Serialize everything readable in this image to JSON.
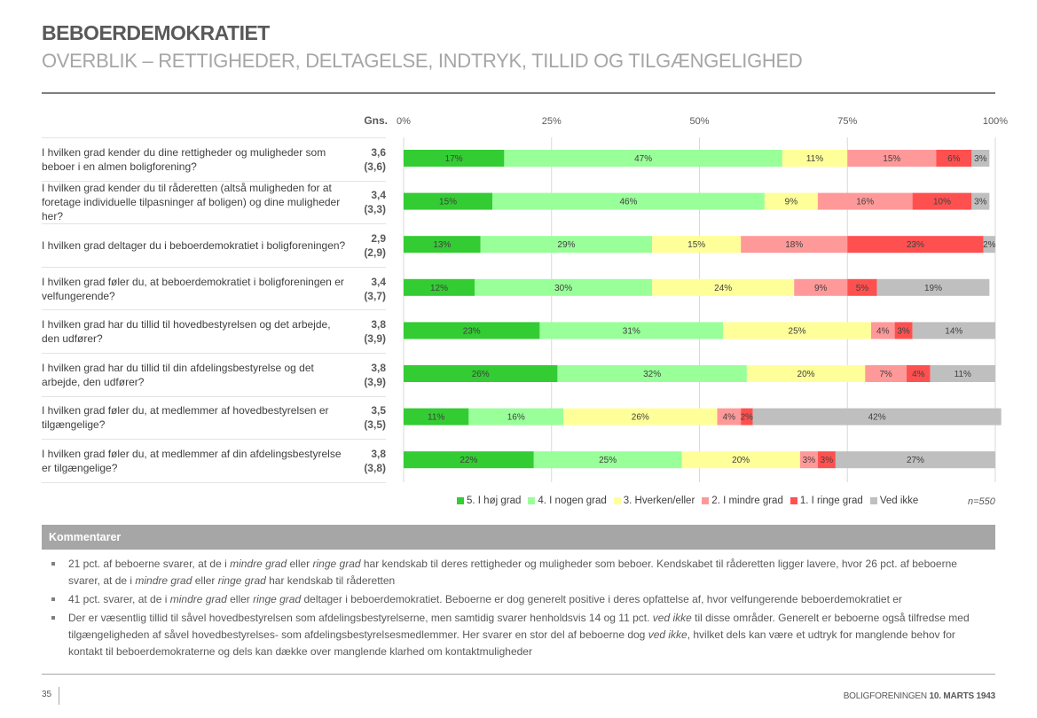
{
  "header": {
    "title": "BEBOERDEMOKRATIET",
    "subtitle": "OVERBLIK – RETTIGHEDER, DELTAGELSE, INDTRYK, TILLID OG TILGÆNGELIGHED"
  },
  "table": {
    "gns_header": "Gns.",
    "rows": [
      {
        "question": "I hvilken grad kender du dine rettigheder og muligheder som beboer i en almen boligforening?",
        "gns": "3,6",
        "gns_prev": "(3,6)"
      },
      {
        "question": "I hvilken grad kender du til råderetten (altså muligheden for at foretage individuelle tilpasninger af boligen) og dine muligheder her?",
        "gns": "3,4",
        "gns_prev": "(3,3)"
      },
      {
        "question": "I hvilken grad deltager du i beboerdemokratiet i boligforeningen?",
        "gns": "2,9",
        "gns_prev": "(2,9)"
      },
      {
        "question": "I hvilken grad føler du, at beboerdemokratiet i boligforeningen er velfungerende?",
        "gns": "3,4",
        "gns_prev": "(3,7)"
      },
      {
        "question": "I hvilken grad har du tillid til hovedbestyrelsen og det arbejde, den udfører?",
        "gns": "3,8",
        "gns_prev": "(3,9)"
      },
      {
        "question": "I hvilken grad har du tillid til din afdelingsbestyrelse og det arbejde, den udfører?",
        "gns": "3,8",
        "gns_prev": "(3,9)"
      },
      {
        "question": "I hvilken grad føler du, at medlemmer af hovedbestyrelsen er tilgængelige?",
        "gns": "3,5",
        "gns_prev": "(3,5)"
      },
      {
        "question": "I hvilken grad føler du, at medlemmer af din afdelingsbestyrelse er tilgængelige?",
        "gns": "3,8",
        "gns_prev": "(3,8)"
      }
    ]
  },
  "chart_data": {
    "type": "bar",
    "orientation": "horizontal",
    "stacked": true,
    "title": "",
    "xlabel": "",
    "ylabel": "",
    "xlim": [
      0,
      100
    ],
    "x_ticks": [
      "0%",
      "25%",
      "50%",
      "75%",
      "100%"
    ],
    "x_tick_values": [
      0,
      25,
      50,
      75,
      100
    ],
    "grid": true,
    "legend_position": "bottom-right",
    "categories": [
      "I hvilken grad kender du dine rettigheder og muligheder som beboer i en almen boligforening?",
      "I hvilken grad kender du til råderetten (altså muligheden for at foretage individuelle tilpasninger af boligen) og dine muligheder her?",
      "I hvilken grad deltager du i beboerdemokratiet i boligforeningen?",
      "I hvilken grad føler du, at beboerdemokratiet i boligforeningen er velfungerende?",
      "I hvilken grad har du tillid til hovedbestyrelsen og det arbejde, den udfører?",
      "I hvilken grad har du tillid til din afdelingsbestyrelse og det arbejde, den udfører?",
      "I hvilken grad føler du, at medlemmer af hovedbestyrelsen er tilgængelige?",
      "I hvilken grad føler du, at medlemmer af din afdelingsbestyrelse er tilgængelige?"
    ],
    "series": [
      {
        "name": "5. I høj grad",
        "color": "#33cc33",
        "values": [
          17,
          15,
          13,
          12,
          23,
          26,
          11,
          22
        ]
      },
      {
        "name": "4. I nogen grad",
        "color": "#99ff99",
        "values": [
          47,
          46,
          29,
          30,
          31,
          32,
          16,
          25
        ]
      },
      {
        "name": "3. Hverken/eller",
        "color": "#ffff99",
        "values": [
          11,
          9,
          15,
          24,
          25,
          20,
          26,
          20
        ]
      },
      {
        "name": "2. I mindre grad",
        "color": "#ff9999",
        "values": [
          15,
          16,
          18,
          9,
          4,
          7,
          4,
          3
        ]
      },
      {
        "name": "1. I ringe grad",
        "color": "#ff5050",
        "values": [
          6,
          10,
          23,
          5,
          3,
          4,
          2,
          3
        ]
      },
      {
        "name": "Ved ikke",
        "color": "#bfbfbf",
        "values": [
          3,
          3,
          2,
          19,
          14,
          11,
          42,
          27
        ]
      }
    ],
    "value_suffix": "%",
    "n_label": "n=550"
  },
  "comments": {
    "header": "Kommentarer",
    "items": [
      [
        {
          "t": "21 pct. af beboerne svarer, at de i "
        },
        {
          "t": "mindre grad",
          "i": true
        },
        {
          "t": " eller "
        },
        {
          "t": "ringe grad",
          "i": true
        },
        {
          "t": " har kendskab til deres rettigheder og muligheder som beboer. Kendskabet til råderetten ligger lavere, hvor 26 pct. af beboerne svarer, at de i "
        },
        {
          "t": "mindre grad",
          "i": true
        },
        {
          "t": " eller "
        },
        {
          "t": "ringe grad",
          "i": true
        },
        {
          "t": " har kendskab til råderetten"
        }
      ],
      [
        {
          "t": "41 pct. svarer, at de i "
        },
        {
          "t": "mindre grad",
          "i": true
        },
        {
          "t": " eller "
        },
        {
          "t": "ringe grad",
          "i": true
        },
        {
          "t": " deltager i beboerdemokratiet. Beboerne er dog generelt positive i deres opfattelse af, hvor velfungerende beboerdemokratiet er"
        }
      ],
      [
        {
          "t": "Der er væsentlig tillid til såvel hovedbestyrelsen som afdelingsbestyrelserne, men samtidig svarer henholdsvis 14 og 11 pct. "
        },
        {
          "t": "ved ikke",
          "i": true
        },
        {
          "t": " til disse områder. Generelt er beboerne også tilfredse med tilgængeligheden af såvel hovedbestyrelses- som afdelingsbestyrelsesmedlemmer. Her svarer en stor del af beboerne dog "
        },
        {
          "t": "ved ikke",
          "i": true
        },
        {
          "t": ", hvilket dels kan være et udtryk for manglende behov for kontakt til beboerdemokraterne og dels kan dække over manglende klarhed om kontaktmuligheder"
        }
      ]
    ]
  },
  "footer": {
    "page_number": "35",
    "org": "BOLIGFORENINGEN",
    "date": "10. MARTS 1943"
  }
}
